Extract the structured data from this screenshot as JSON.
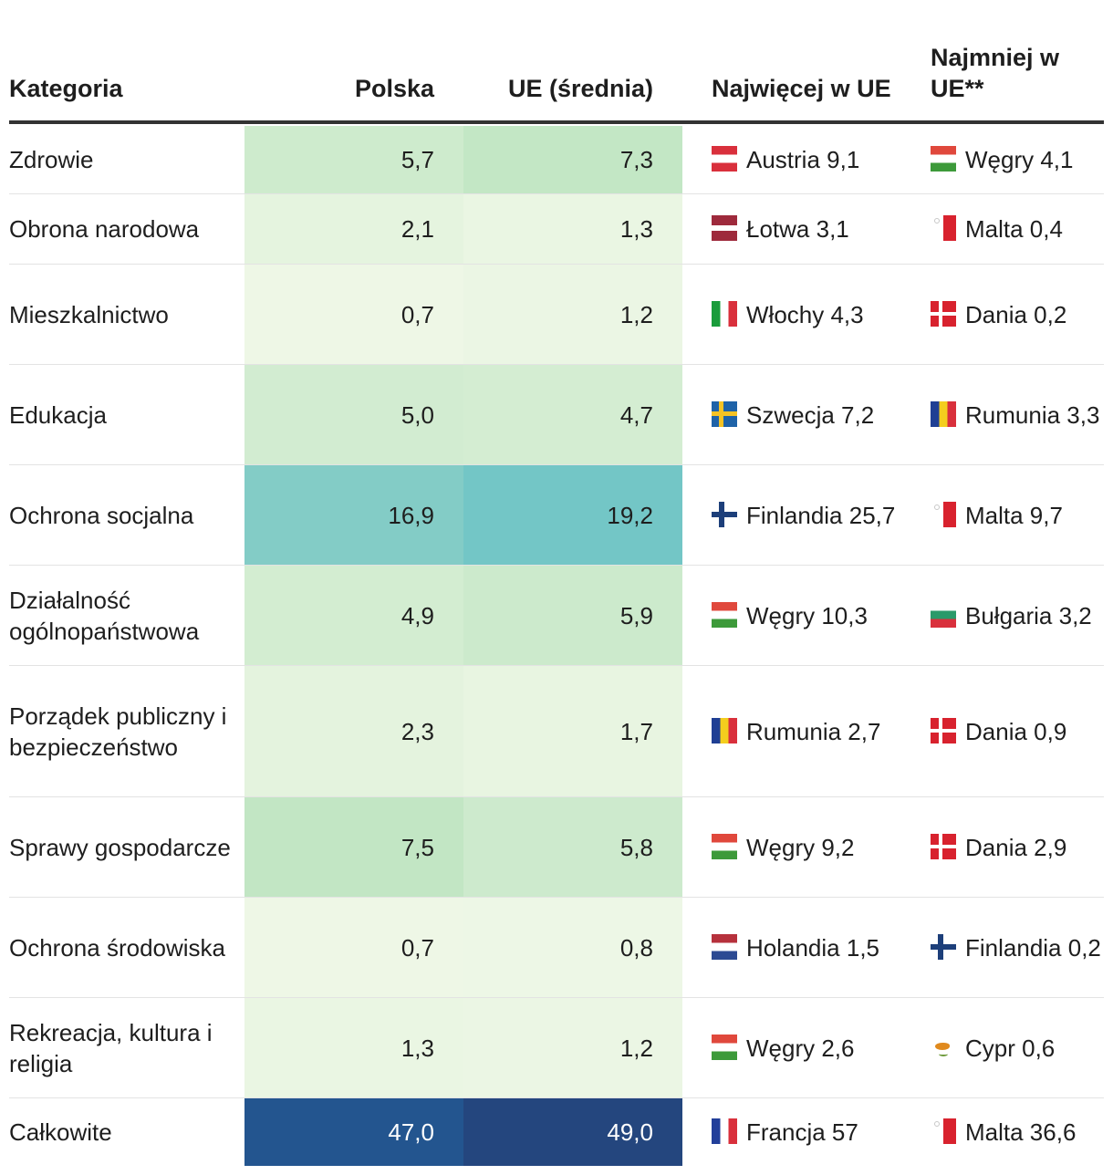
{
  "chart_data": {
    "type": "table",
    "columns": [
      "Kategoria",
      "Polska",
      "UE (średnia)",
      "Najwięcej w UE",
      "Najmniej w UE**"
    ],
    "rows": [
      {
        "category": "Zdrowie",
        "poland": "5,7",
        "eu": "7,3",
        "max": {
          "country": "Austria 9,1",
          "flag": "flag-austria-icon"
        },
        "min": {
          "country": "Węgry 4,1",
          "flag": "flag-hungary-icon"
        }
      },
      {
        "category": "Obrona narodowa",
        "poland": "2,1",
        "eu": "1,3",
        "max": {
          "country": "Łotwa 3,1",
          "flag": "flag-latvia-icon"
        },
        "min": {
          "country": "Malta 0,4",
          "flag": "flag-malta-icon"
        }
      },
      {
        "category": "Mieszkalnictwo",
        "poland": "0,7",
        "eu": "1,2",
        "max": {
          "country": "Włochy 4,3",
          "flag": "flag-italy-icon"
        },
        "min": {
          "country": "Dania 0,2",
          "flag": "flag-denmark-icon"
        }
      },
      {
        "category": "Edukacja",
        "poland": "5,0",
        "eu": "4,7",
        "max": {
          "country": "Szwecja 7,2",
          "flag": "flag-sweden-icon"
        },
        "min": {
          "country": "Rumunia 3,3",
          "flag": "flag-romania-icon"
        }
      },
      {
        "category": "Ochrona socjalna",
        "poland": "16,9",
        "eu": "19,2",
        "max": {
          "country": "Finlandia 25,7",
          "flag": "flag-finland-icon"
        },
        "min": {
          "country": "Malta 9,7",
          "flag": "flag-malta-icon"
        }
      },
      {
        "category": "Działalność ogólnopaństwowa",
        "poland": "4,9",
        "eu": "5,9",
        "max": {
          "country": "Węgry 10,3",
          "flag": "flag-hungary-icon"
        },
        "min": {
          "country": "Bułgaria 3,2",
          "flag": "flag-bulgaria-icon"
        }
      },
      {
        "category": "Porządek publiczny i bezpieczeństwo",
        "poland": "2,3",
        "eu": "1,7",
        "max": {
          "country": "Rumunia 2,7",
          "flag": "flag-romania-icon"
        },
        "min": {
          "country": "Dania 0,9",
          "flag": "flag-denmark-icon"
        }
      },
      {
        "category": "Sprawy gospodarcze",
        "poland": "7,5",
        "eu": "5,8",
        "max": {
          "country": "Węgry 9,2",
          "flag": "flag-hungary-icon"
        },
        "min": {
          "country": "Dania 2,9",
          "flag": "flag-denmark-icon"
        }
      },
      {
        "category": "Ochrona środowiska",
        "poland": "0,7",
        "eu": "0,8",
        "max": {
          "country": "Holandia 1,5",
          "flag": "flag-netherlands-icon"
        },
        "min": {
          "country": "Finlandia 0,2",
          "flag": "flag-finland-icon"
        }
      },
      {
        "category": "Rekreacja, kultura i religia",
        "poland": "1,3",
        "eu": "1,2",
        "max": {
          "country": "Węgry 2,6",
          "flag": "flag-hungary-icon"
        },
        "min": {
          "country": "Cypr 0,6",
          "flag": "flag-cyprus-icon"
        }
      },
      {
        "category": "Całkowite",
        "poland": "47,0",
        "eu": "49,0",
        "max": {
          "country": "Francja 57",
          "flag": "flag-france-icon"
        },
        "min": {
          "country": "Malta 36,6",
          "flag": "flag-malta-icon"
        }
      }
    ],
    "color_scale": {
      "low": "#eef7e6",
      "mid": "#c2e6c4",
      "high": "#73c6c6",
      "total_poland": "#23558f",
      "total_eu": "#24467e"
    }
  }
}
